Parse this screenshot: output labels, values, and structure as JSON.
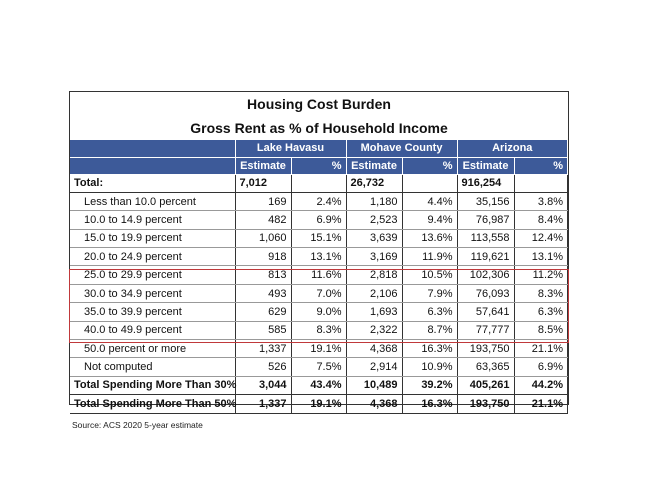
{
  "title": "Housing Cost Burden",
  "subtitle": "Gross Rent as % of Household Income",
  "regions": [
    "Lake Havasu",
    "Mohave County",
    "Arizona"
  ],
  "subheaders": [
    "Estimate",
    "%"
  ],
  "total": {
    "label": "Total:",
    "values": [
      "7,012",
      "",
      "26,732",
      "",
      "916,254",
      ""
    ]
  },
  "rows": [
    {
      "label": "Less than 10.0 percent",
      "values": [
        "169",
        "2.4%",
        "1,180",
        "4.4%",
        "35,156",
        "3.8%"
      ]
    },
    {
      "label": "10.0 to 14.9 percent",
      "values": [
        "482",
        "6.9%",
        "2,523",
        "9.4%",
        "76,987",
        "8.4%"
      ]
    },
    {
      "label": "15.0 to 19.9 percent",
      "values": [
        "1,060",
        "15.1%",
        "3,639",
        "13.6%",
        "113,558",
        "12.4%"
      ]
    },
    {
      "label": "20.0 to 24.9 percent",
      "values": [
        "918",
        "13.1%",
        "3,169",
        "11.9%",
        "119,621",
        "13.1%"
      ]
    },
    {
      "label": "25.0 to 29.9 percent",
      "values": [
        "813",
        "11.6%",
        "2,818",
        "10.5%",
        "102,306",
        "11.2%"
      ]
    },
    {
      "label": "30.0 to 34.9 percent",
      "values": [
        "493",
        "7.0%",
        "2,106",
        "7.9%",
        "76,093",
        "8.3%"
      ]
    },
    {
      "label": "35.0 to 39.9 percent",
      "values": [
        "629",
        "9.0%",
        "1,693",
        "6.3%",
        "57,641",
        "6.3%"
      ]
    },
    {
      "label": "40.0 to 49.9 percent",
      "values": [
        "585",
        "8.3%",
        "2,322",
        "8.7%",
        "77,777",
        "8.5%"
      ]
    },
    {
      "label": "50.0 percent or more",
      "values": [
        "1,337",
        "19.1%",
        "4,368",
        "16.3%",
        "193,750",
        "21.1%"
      ]
    },
    {
      "label": "Not computed",
      "values": [
        "526",
        "7.5%",
        "2,914",
        "10.9%",
        "63,365",
        "6.9%"
      ]
    }
  ],
  "summary": [
    {
      "label": "Total Spending More Than 30%",
      "values": [
        "3,044",
        "43.4%",
        "10,489",
        "39.2%",
        "405,261",
        "44.2%"
      ]
    },
    {
      "label": "Total Spending More Than 50%",
      "values": [
        "1,337",
        "19.1%",
        "4,368",
        "16.3%",
        "193,750",
        "21.1%"
      ]
    }
  ],
  "source": "Source: ACS 2020 5-year estimate",
  "colors": {
    "header": "#3d5a99",
    "highlight": "#c0393b"
  }
}
